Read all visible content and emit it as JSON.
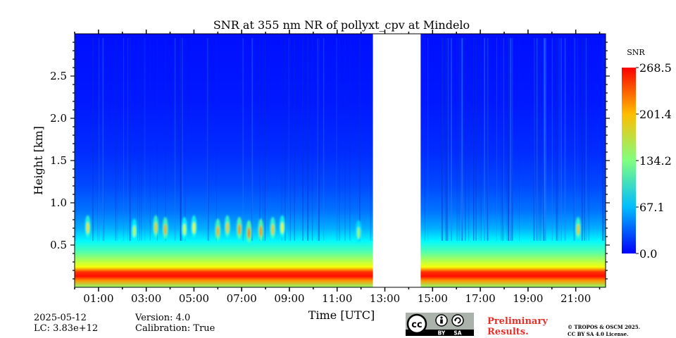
{
  "chart_data": {
    "type": "heatmap",
    "title": "SNR at 355 nm NR of pollyxt_cpv at Mindelo",
    "xlabel": "Time [UTC]",
    "ylabel": "Height [km]",
    "xlim_hours": [
      0.0,
      22.25
    ],
    "ylim_km": [
      0.0,
      3.0
    ],
    "xticks": [
      {
        "hour": 1,
        "label": "01:00"
      },
      {
        "hour": 3,
        "label": "03:00"
      },
      {
        "hour": 5,
        "label": "05:00"
      },
      {
        "hour": 7,
        "label": "07:00"
      },
      {
        "hour": 9,
        "label": "09:00"
      },
      {
        "hour": 11,
        "label": "11:00"
      },
      {
        "hour": 13,
        "label": "13:00"
      },
      {
        "hour": 15,
        "label": "15:00"
      },
      {
        "hour": 17,
        "label": "17:00"
      },
      {
        "hour": 19,
        "label": "19:00"
      },
      {
        "hour": 21,
        "label": "21:00"
      }
    ],
    "yticks": [
      {
        "value": 0.5,
        "label": "0.5"
      },
      {
        "value": 1.0,
        "label": "1.0"
      },
      {
        "value": 1.5,
        "label": "1.5"
      },
      {
        "value": 2.0,
        "label": "2.0"
      },
      {
        "value": 2.5,
        "label": "2.5"
      }
    ],
    "data_gap_hours": [
      12.5,
      14.5
    ],
    "colorbar": {
      "label": "SNR",
      "min": 0.0,
      "max": 268.5,
      "ticks": [
        {
          "value": 0.0,
          "label": "0.0"
        },
        {
          "value": 67.1,
          "label": "67.1"
        },
        {
          "value": 134.2,
          "label": "134.2"
        },
        {
          "value": 201.4,
          "label": "201.4"
        },
        {
          "value": 268.5,
          "label": "268.5"
        }
      ]
    },
    "vertical_profile": [
      {
        "height_km": 0.0,
        "snr": 140
      },
      {
        "height_km": 0.08,
        "snr": 215
      },
      {
        "height_km": 0.13,
        "snr": 262
      },
      {
        "height_km": 0.18,
        "snr": 250
      },
      {
        "height_km": 0.24,
        "snr": 175
      },
      {
        "height_km": 0.32,
        "snr": 150
      },
      {
        "height_km": 0.42,
        "snr": 118
      },
      {
        "height_km": 0.55,
        "snr": 88
      },
      {
        "height_km": 0.7,
        "snr": 62
      },
      {
        "height_km": 0.9,
        "snr": 42
      },
      {
        "height_km": 1.2,
        "snr": 27
      },
      {
        "height_km": 1.6,
        "snr": 17
      },
      {
        "height_km": 2.2,
        "snr": 10
      },
      {
        "height_km": 3.0,
        "snr": 7
      }
    ],
    "cloud_features": [
      {
        "hour": 0.55,
        "height_km": 0.72,
        "snr": 190
      },
      {
        "hour": 2.5,
        "height_km": 0.68,
        "snr": 160
      },
      {
        "hour": 3.4,
        "height_km": 0.72,
        "snr": 200
      },
      {
        "hour": 3.8,
        "height_km": 0.7,
        "snr": 210
      },
      {
        "hour": 4.6,
        "height_km": 0.7,
        "snr": 170
      },
      {
        "hour": 5.0,
        "height_km": 0.72,
        "snr": 180
      },
      {
        "hour": 6.0,
        "height_km": 0.68,
        "snr": 210
      },
      {
        "hour": 6.4,
        "height_km": 0.72,
        "snr": 200
      },
      {
        "hour": 6.9,
        "height_km": 0.7,
        "snr": 220
      },
      {
        "hour": 7.3,
        "height_km": 0.66,
        "snr": 230
      },
      {
        "hour": 7.8,
        "height_km": 0.68,
        "snr": 220
      },
      {
        "hour": 8.3,
        "height_km": 0.7,
        "snr": 200
      },
      {
        "hour": 8.7,
        "height_km": 0.72,
        "snr": 180
      },
      {
        "hour": 11.9,
        "height_km": 0.66,
        "snr": 150
      },
      {
        "hour": 21.1,
        "height_km": 0.7,
        "snr": 200
      }
    ]
  },
  "footer": {
    "date": "2025-05-12",
    "lc": "LC: 3.83e+12",
    "version": "Version: 4.0",
    "calibration": "Calibration: True",
    "prelim_line1": "Preliminary",
    "prelim_line2": "Results.",
    "copyright_line1": "© TROPOS & OSCM 2025.",
    "copyright_line2": "CC BY SA 4.0 License.",
    "cc_label": "cc",
    "cc_by": "BY",
    "cc_sa": "SA"
  }
}
